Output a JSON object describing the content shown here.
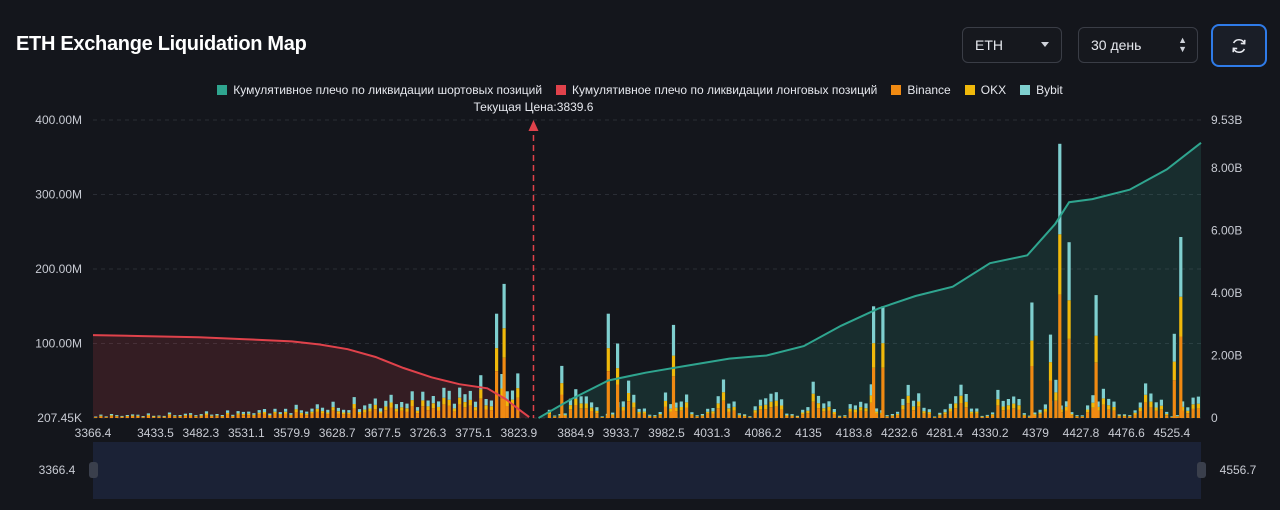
{
  "header": {
    "title": "ETH Exchange Liquidation Map",
    "asset_select": "ETH",
    "period_select": "30 день",
    "refresh_icon": "refresh-icon"
  },
  "colors": {
    "short_cum": "#2fa58f",
    "long_cum": "#e0424b",
    "binance": "#f08a12",
    "okx": "#f0b90b",
    "bybit": "#7fcfcf",
    "current_price_line": "#e0424b"
  },
  "chart_data": {
    "type": "bar",
    "title": "",
    "legend": [
      {
        "name": "Кумулятивное плечо по ликвидации шортовых позиций",
        "color": "#2fa58f"
      },
      {
        "name": "Кумулятивное плечо по ликвидации лонговых позиций",
        "color": "#e0424b"
      },
      {
        "name": "Binance",
        "color": "#f08a12"
      },
      {
        "name": "OKX",
        "color": "#f0b90b"
      },
      {
        "name": "Bybit",
        "color": "#7fcfcf"
      }
    ],
    "legend_position": "top-center",
    "current_price": 3839.6,
    "current_price_label": "Текущая Цена:3839.6",
    "x_ticks": [
      "3366.4",
      "3433.5",
      "3482.3",
      "3531.1",
      "3579.9",
      "3628.7",
      "3677.5",
      "3726.3",
      "3775.1",
      "3823.9",
      "3884.9",
      "3933.7",
      "3982.5",
      "4031.3",
      "4086.2",
      "4135",
      "4183.8",
      "4232.6",
      "4281.4",
      "4330.2",
      "4379",
      "4427.8",
      "4476.6",
      "4525.4"
    ],
    "x_range": [
      3366.4,
      4556.7
    ],
    "y_left_ticks": [
      "207.45K",
      "100.00M",
      "200.00M",
      "300.00M",
      "400.00M"
    ],
    "y_left_range": [
      0,
      400
    ],
    "y_left_unit": "M",
    "y_right_ticks": [
      "0",
      "2.00B",
      "4.00B",
      "6.00B",
      "8.00B",
      "9.53B"
    ],
    "y_right_range": [
      0,
      9.53
    ],
    "y_right_unit": "B",
    "grid": true,
    "cumulative_long": {
      "x": [
        3366.4,
        3420,
        3480,
        3530,
        3580,
        3610,
        3640,
        3670,
        3700,
        3730,
        3760,
        3790,
        3810,
        3825,
        3835
      ],
      "y": [
        2.65,
        2.62,
        2.58,
        2.52,
        2.45,
        2.35,
        2.2,
        1.95,
        1.6,
        1.3,
        1.08,
        0.95,
        0.6,
        0.25,
        0.03
      ]
    },
    "cumulative_short": {
      "x": [
        3845,
        3880,
        3920,
        3960,
        4000,
        4050,
        4090,
        4130,
        4170,
        4210,
        4250,
        4290,
        4330,
        4370,
        4400,
        4415,
        4440,
        4480,
        4520,
        4556.7
      ],
      "y": [
        0,
        0.6,
        1.2,
        1.45,
        1.65,
        1.9,
        2.0,
        2.3,
        2.95,
        3.5,
        3.9,
        4.2,
        4.95,
        5.2,
        6.2,
        6.9,
        7.0,
        7.3,
        7.95,
        8.8
      ]
    },
    "range_selector": {
      "min_label": "3366.4",
      "max_label": "4556.7"
    }
  }
}
